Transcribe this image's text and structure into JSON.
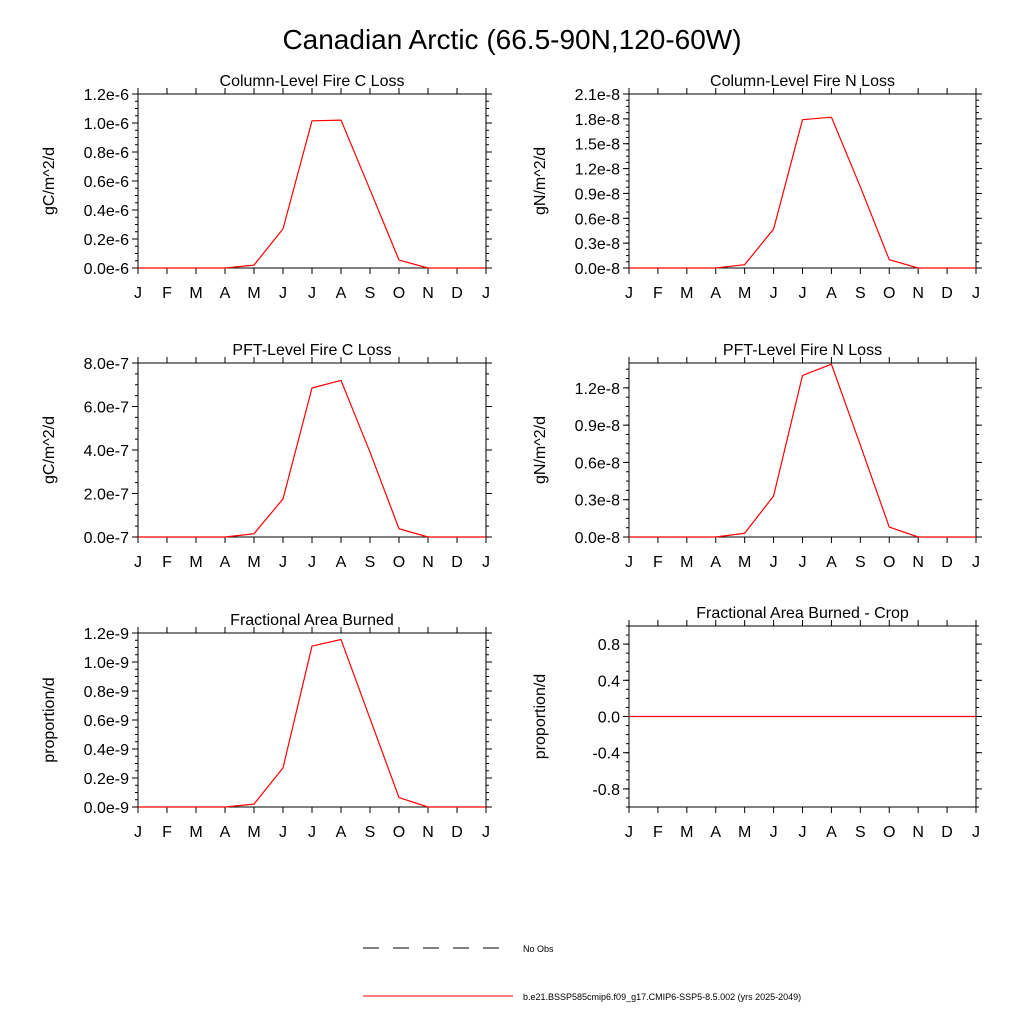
{
  "figure": {
    "title": "Canadian Arctic (66.5-90N,120-60W)",
    "legend": {
      "obs_label": "No Obs",
      "model_label": "b.e21.BSSP585cmip6.f09_g17.CMIP6-SSP5-8.5.002 (yrs 2025-2049)",
      "obs_color": "#000000",
      "model_color": "#ff0000"
    }
  },
  "chart_data": [
    {
      "type": "line",
      "title": "Column-Level Fire C Loss",
      "ylabel": "gC/m^2/d",
      "xlabel": "",
      "categories": [
        "J",
        "F",
        "M",
        "A",
        "M",
        "J",
        "J",
        "A",
        "S",
        "O",
        "N",
        "D",
        "J"
      ],
      "ylim": [
        0,
        1.2e-06
      ],
      "yticks": [
        0,
        2e-07,
        4e-07,
        6e-07,
        8e-07,
        1e-06,
        1.2e-06
      ],
      "ytick_labels": [
        "0.0e-6",
        "0.2e-6",
        "0.4e-6",
        "0.6e-6",
        "0.8e-6",
        "1.0e-6",
        "1.2e-6"
      ],
      "series": [
        {
          "name": "b.e21.BSSP585cmip6.f09_g17.CMIP6-SSP5-8.5.002 (yrs 2025-2049)",
          "color": "#ff0000",
          "values": [
            0,
            0,
            0,
            0,
            2e-08,
            2.7e-07,
            1.015e-06,
            1.02e-06,
            5.4e-07,
            5.5e-08,
            0,
            0,
            0
          ]
        }
      ]
    },
    {
      "type": "line",
      "title": "Column-Level Fire N Loss",
      "ylabel": "gN/m^2/d",
      "xlabel": "",
      "categories": [
        "J",
        "F",
        "M",
        "A",
        "M",
        "J",
        "J",
        "A",
        "S",
        "O",
        "N",
        "D",
        "J"
      ],
      "ylim": [
        0,
        2.1e-08
      ],
      "yticks": [
        0,
        3e-09,
        6e-09,
        9e-09,
        1.2e-08,
        1.5e-08,
        1.8e-08,
        2.1e-08
      ],
      "ytick_labels": [
        "0.0e-8",
        "0.3e-8",
        "0.6e-8",
        "0.9e-8",
        "1.2e-8",
        "1.5e-8",
        "1.8e-8",
        "2.1e-8"
      ],
      "series": [
        {
          "name": "b.e21.BSSP585cmip6.f09_g17.CMIP6-SSP5-8.5.002 (yrs 2025-2049)",
          "color": "#ff0000",
          "values": [
            0,
            0,
            0,
            0,
            4e-10,
            4.7e-09,
            1.79e-08,
            1.82e-08,
            9.8e-09,
            1e-09,
            0,
            0,
            0
          ]
        }
      ]
    },
    {
      "type": "line",
      "title": "PFT-Level Fire C Loss",
      "ylabel": "gC/m^2/d",
      "xlabel": "",
      "categories": [
        "J",
        "F",
        "M",
        "A",
        "M",
        "J",
        "J",
        "A",
        "S",
        "O",
        "N",
        "D",
        "J"
      ],
      "ylim": [
        0,
        8e-07
      ],
      "yticks": [
        0,
        2e-07,
        4e-07,
        6e-07,
        8e-07
      ],
      "ytick_labels": [
        "0.0e-7",
        "2.0e-7",
        "4.0e-7",
        "6.0e-7",
        "8.0e-7"
      ],
      "series": [
        {
          "name": "b.e21.BSSP585cmip6.f09_g17.CMIP6-SSP5-8.5.002 (yrs 2025-2049)",
          "color": "#ff0000",
          "values": [
            0,
            0,
            0,
            0,
            1.5e-08,
            1.75e-07,
            6.85e-07,
            7.2e-07,
            3.9e-07,
            3.8e-08,
            0,
            0,
            0
          ]
        }
      ]
    },
    {
      "type": "line",
      "title": "PFT-Level Fire N Loss",
      "ylabel": "gN/m^2/d",
      "xlabel": "",
      "categories": [
        "J",
        "F",
        "M",
        "A",
        "M",
        "J",
        "J",
        "A",
        "S",
        "O",
        "N",
        "D",
        "J"
      ],
      "ylim": [
        0,
        1.4e-08
      ],
      "yticks": [
        0,
        3e-09,
        6e-09,
        9e-09,
        1.2e-08
      ],
      "ytick_labels": [
        "0.0e-8",
        "0.3e-8",
        "0.6e-8",
        "0.9e-8",
        "1.2e-8"
      ],
      "series": [
        {
          "name": "b.e21.BSSP585cmip6.f09_g17.CMIP6-SSP5-8.5.002 (yrs 2025-2049)",
          "color": "#ff0000",
          "values": [
            0,
            0,
            0,
            0,
            3e-10,
            3.3e-09,
            1.3e-08,
            1.39e-08,
            7.4e-09,
            8e-10,
            0,
            0,
            0
          ]
        }
      ]
    },
    {
      "type": "line",
      "title": "Fractional Area Burned",
      "ylabel": "proportion/d",
      "xlabel": "",
      "categories": [
        "J",
        "F",
        "M",
        "A",
        "M",
        "J",
        "J",
        "A",
        "S",
        "O",
        "N",
        "D",
        "J"
      ],
      "ylim": [
        0,
        1.2e-09
      ],
      "yticks": [
        0,
        2e-10,
        4e-10,
        6e-10,
        8e-10,
        1e-09,
        1.2e-09
      ],
      "ytick_labels": [
        "0.0e-9",
        "0.2e-9",
        "0.4e-9",
        "0.6e-9",
        "0.8e-9",
        "1.0e-9",
        "1.2e-9"
      ],
      "series": [
        {
          "name": "b.e21.BSSP585cmip6.f09_g17.CMIP6-SSP5-8.5.002 (yrs 2025-2049)",
          "color": "#ff0000",
          "values": [
            0,
            0,
            0,
            0,
            2e-11,
            2.7e-10,
            1.11e-09,
            1.155e-09,
            6.1e-10,
            6.5e-11,
            0,
            0,
            0
          ]
        }
      ]
    },
    {
      "type": "line",
      "title": "Fractional Area Burned - Crop",
      "ylabel": "proportion/d",
      "xlabel": "",
      "categories": [
        "J",
        "F",
        "M",
        "A",
        "M",
        "J",
        "J",
        "A",
        "S",
        "O",
        "N",
        "D",
        "J"
      ],
      "ylim": [
        -1.0,
        1.0
      ],
      "yticks": [
        -0.8,
        -0.4,
        0,
        0.4,
        0.8
      ],
      "ytick_labels": [
        "-0.8",
        "-0.4",
        "0.0",
        "0.4",
        "0.8"
      ],
      "series": [
        {
          "name": "b.e21.BSSP585cmip6.f09_g17.CMIP6-SSP5-8.5.002 (yrs 2025-2049)",
          "color": "#ff0000",
          "values": [
            0,
            0,
            0,
            0,
            0,
            0,
            0,
            0,
            0,
            0,
            0,
            0,
            0
          ]
        }
      ]
    }
  ]
}
